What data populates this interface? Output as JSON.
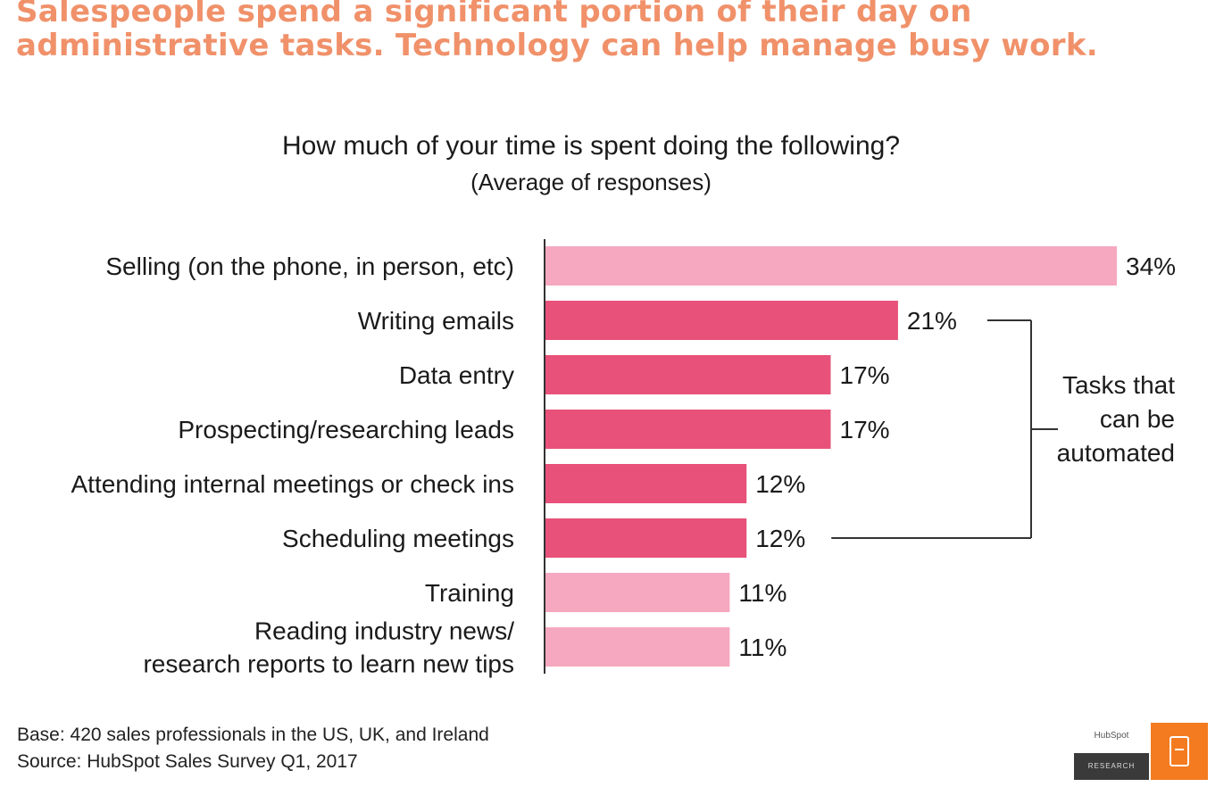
{
  "headline": "Salespeople spend a significant portion of their day on administrative tasks. Technology can help manage busy work.",
  "colors": {
    "headline": "#f0916a",
    "automatable_bar": "#e8517a",
    "other_bar": "#f5a8bf",
    "axis": "#333333",
    "logo_accent": "#f47b20"
  },
  "chart_data": {
    "type": "bar",
    "orientation": "horizontal",
    "title": "How much of your time is spent doing the following?",
    "subtitle": "(Average of responses)",
    "categories": [
      [
        "Selling (on the phone, in person, etc)"
      ],
      [
        "Writing emails"
      ],
      [
        "Data entry"
      ],
      [
        "Prospecting/researching leads"
      ],
      [
        "Attending internal meetings or check ins"
      ],
      [
        "Scheduling meetings"
      ],
      [
        "Training"
      ],
      [
        "Reading industry news/",
        "research reports to learn new tips"
      ]
    ],
    "values": [
      34,
      21,
      17,
      17,
      12,
      12,
      11,
      11
    ],
    "value_labels": [
      "34%",
      "21%",
      "17%",
      "17%",
      "12%",
      "12%",
      "11%",
      "11%"
    ],
    "automatable": [
      false,
      true,
      true,
      true,
      true,
      true,
      false,
      false
    ],
    "annotation": {
      "lines": [
        "Tasks that",
        "can be",
        "automated"
      ],
      "from_category": 1,
      "to_category": 5
    },
    "xlim": [
      0,
      34
    ],
    "grid": false,
    "legend": "none"
  },
  "footnotes": {
    "base": "Base: 420 sales professionals in the US, UK, and Ireland",
    "source": "Source: HubSpot Sales Survey Q1, 2017"
  },
  "logo": {
    "top_text": "HubSpot",
    "bottom_text": "RESEARCH"
  }
}
